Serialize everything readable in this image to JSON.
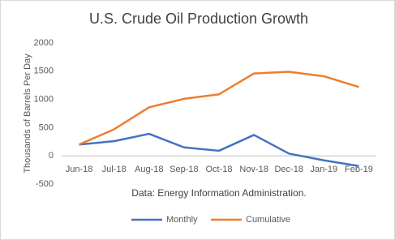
{
  "chart_data": {
    "type": "line",
    "title": "U.S. Crude Oil Production Growth",
    "y_label": "Thousands of Barrels Per Day",
    "annotation": "Data: Energy Information Administration.",
    "categories": [
      "Jun-18",
      "Jul-18",
      "Aug-18",
      "Sep-18",
      "Oct-18",
      "Nov-18",
      "Dec-18",
      "Jan-19",
      "Feb-19"
    ],
    "series": [
      {
        "name": "Monthly",
        "color": "#4472c4",
        "values": [
          200,
          260,
          390,
          150,
          90,
          370,
          40,
          -80,
          -180
        ]
      },
      {
        "name": "Cumulative",
        "color": "#ed7d31",
        "values": [
          200,
          470,
          860,
          1010,
          1090,
          1460,
          1490,
          1410,
          1220
        ]
      }
    ],
    "ylim": [
      -500,
      2000
    ],
    "yticks": [
      -500,
      0,
      500,
      1000,
      1500,
      2000
    ],
    "grid": false,
    "legend": "bottom"
  }
}
